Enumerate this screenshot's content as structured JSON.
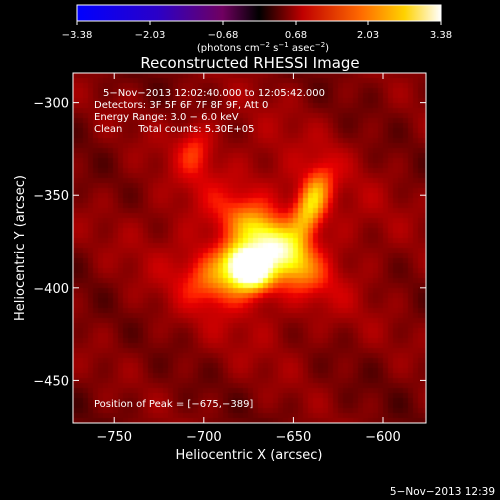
{
  "chart_data": {
    "type": "heatmap",
    "title": "Reconstructed RHESSI Image",
    "xlabel": "Heliocentric X (arcsec)",
    "ylabel": "Heliocentric Y (arcsec)",
    "xlim": [
      -773,
      -576
    ],
    "ylim": [
      -473,
      -284
    ],
    "xticks": [
      -750,
      -700,
      -650,
      -600
    ],
    "yticks": [
      -300,
      -350,
      -400,
      -450
    ],
    "xtick_labels": [
      "−750",
      "−700",
      "−650",
      "−600"
    ],
    "ytick_labels": [
      "−300",
      "−350",
      "−400",
      "−450"
    ],
    "colormap": "bright-hot",
    "colorbar": {
      "range": [
        -3.38,
        3.38
      ],
      "ticks": [
        "−3.38",
        "−2.03",
        "−0.68",
        "0.68",
        "2.03",
        "3.38"
      ],
      "unit_text": "(photons cm",
      "unit_exp1": "−2",
      "unit_mid": " s",
      "unit_exp2": "−1",
      "unit_mid2": " asec",
      "unit_exp3": "−2",
      "unit_end": ")"
    },
    "annotation_lines": [
      "5−Nov−2013 12:02:40.000 to 12:05:42.000",
      "Detectors: 3F 5F 6F 7F 8F 9F, Att 0",
      "Energy Range: 3.0 − 6.0 keV",
      "Clean     Total counts: 5.30E+05"
    ],
    "peak_label": "Position of Peak = [−675,−389]",
    "peak": {
      "x": -675,
      "y": -389,
      "value": 3.38
    },
    "sources": [
      {
        "x": -675,
        "y": -389,
        "sx": 9,
        "sy": 7,
        "amp": 1.0,
        "rot": -35
      },
      {
        "x": -660,
        "y": -378,
        "sx": 18,
        "sy": 8,
        "amp": 0.62,
        "rot": -40
      },
      {
        "x": -640,
        "y": -355,
        "sx": 6,
        "sy": 14,
        "amp": 0.5,
        "rot": -20
      },
      {
        "x": -690,
        "y": -395,
        "sx": 14,
        "sy": 10,
        "amp": 0.35,
        "rot": 0
      },
      {
        "x": -705,
        "y": -325,
        "sx": 7,
        "sy": 10,
        "amp": 0.22,
        "rot": 0
      },
      {
        "x": -668,
        "y": -372,
        "sx": 45,
        "sy": 40,
        "amp": 0.18,
        "rot": 0
      }
    ]
  },
  "footer": {
    "timestamp": "5−Nov−2013 12:39"
  }
}
